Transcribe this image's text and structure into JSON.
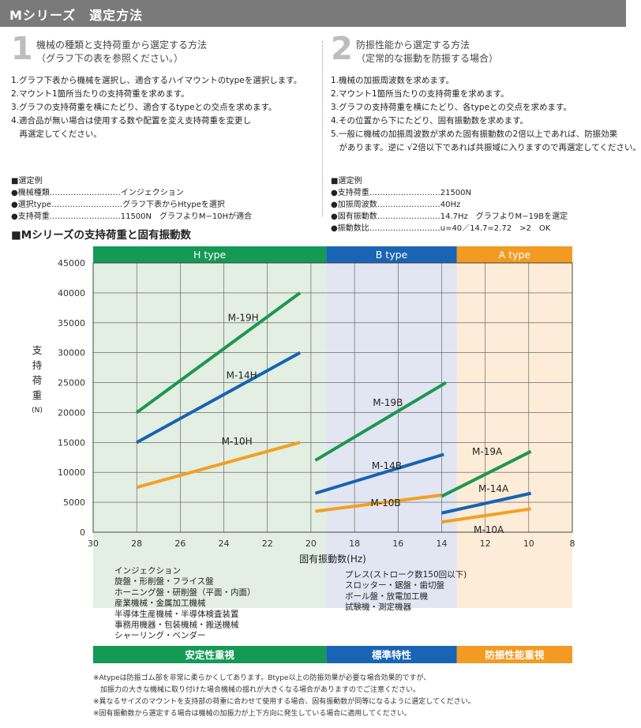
{
  "header": {
    "title": "Mシリーズ　選定方法"
  },
  "method1": {
    "number": "1",
    "title": "機械の種類と支持荷重から選定する方法",
    "subtitle": "（グラフ下の表を参照ください。）",
    "steps": [
      "1.グラフ下表から機械を選択し、適合するハイマウントのtypeを選択します。",
      "2.マウント1箇所当たりの支持荷重を求めます。",
      "3.グラフの支持荷重を横にたどり、適合するtypeとの交点を求めます。",
      "4.適合品が無い場合は使用する数や配置を変え支持荷重を変更し",
      "　再選定してください。"
    ],
    "example_title": "■選定例",
    "example": [
      "●機械種類………………………インジェクション",
      "●選択type………………………グラフ下表からHtypeを選択",
      "●支持荷重………………………11500N　グラフよりM−10Hが適合"
    ]
  },
  "method2": {
    "number": "2",
    "title": "防振性能から選定する方法",
    "subtitle": "（定常的な振動を防振する場合）",
    "steps": [
      "1.機械の加振周波数を求めます。",
      "2.マウント1箇所当たりの支持荷重を求めます。",
      "3.グラフの支持荷重を横にたどり、各typeとの交点を求めます。",
      "4.その位置から下にたどり、固有振動数を求めます。",
      "5.一般に機械の加振周波数が求めた固有振動数の2倍以上であれば、防振効果",
      "　があります。逆に √2倍以下であれば共振域に入りますので再選定してください。"
    ],
    "example_title": "■選定例",
    "example": [
      "●支持荷重………………………21500N",
      "●加振周波数……………………40Hz",
      "●固有振動数……………………14.7Hz　グラフよりM−19Bを選定",
      "●振動数比………………………u=40／14.7=2.72　>2　OK"
    ]
  },
  "chart_heading": "■Mシリーズの支持荷重と固有振動数",
  "chart_data": {
    "type": "line",
    "title": "",
    "xlabel": "固有振動数(Hz)",
    "ylabel": "支持荷重",
    "ylabel_unit": "(N)",
    "xlim": [
      30,
      8
    ],
    "ylim": [
      0,
      45000
    ],
    "x_ticks": [
      30,
      28,
      26,
      24,
      22,
      20,
      18,
      16,
      14,
      12,
      10,
      8
    ],
    "y_ticks": [
      0,
      5000,
      10000,
      15000,
      20000,
      25000,
      30000,
      35000,
      40000,
      45000
    ],
    "grid": true,
    "bands": [
      {
        "label": "H type",
        "from": 30,
        "to": 19.3,
        "bar_color": "#149a55",
        "fill": "#e2efe2",
        "bottom_label": "安定性重視"
      },
      {
        "label": "B type",
        "from": 19.3,
        "to": 13.3,
        "bar_color": "#1a64b4",
        "fill": "#e1e6f2",
        "bottom_label": "標準特性"
      },
      {
        "label": "A type",
        "from": 13.3,
        "to": 8,
        "bar_color": "#f29a22",
        "fill": "#fcecd8",
        "bottom_label": "防振性能重視"
      }
    ],
    "series": [
      {
        "name": "M-19H",
        "color": "#1f9650",
        "x": [
          28,
          20.5
        ],
        "y": [
          20000,
          40000
        ]
      },
      {
        "name": "M-14H",
        "color": "#1763b2",
        "x": [
          28,
          20.5
        ],
        "y": [
          15000,
          30000
        ]
      },
      {
        "name": "M-10H",
        "color": "#f2a023",
        "x": [
          28,
          20.5
        ],
        "y": [
          7500,
          15000
        ]
      },
      {
        "name": "M-19B",
        "color": "#1f9650",
        "x": [
          19.8,
          13.8
        ],
        "y": [
          12000,
          25000
        ]
      },
      {
        "name": "M-14B",
        "color": "#1763b2",
        "x": [
          19.8,
          13.9
        ],
        "y": [
          6500,
          13000
        ]
      },
      {
        "name": "M-10B",
        "color": "#f2a023",
        "x": [
          19.8,
          14.0
        ],
        "y": [
          3500,
          6200
        ]
      },
      {
        "name": "M-19A",
        "color": "#1f9650",
        "x": [
          14.0,
          9.9
        ],
        "y": [
          6000,
          13500
        ]
      },
      {
        "name": "M-14A",
        "color": "#1763b2",
        "x": [
          14.0,
          9.9
        ],
        "y": [
          3200,
          6500
        ]
      },
      {
        "name": "M-10A",
        "color": "#f2a023",
        "x": [
          14.0,
          9.9
        ],
        "y": [
          1700,
          3900
        ]
      }
    ],
    "band_machines": {
      "h_type": [
        "インジェクション",
        "旋盤・形削盤・フライス盤",
        "ホーニング盤・研削盤（平面・内面）",
        "産業機械・金属加工機械",
        "半導体生産機械・半導体検査装置",
        "事務用機器・包装機械・搬送機械",
        "シャーリング・ベンダー"
      ],
      "b_type": [
        "プレス(ストローク数150回以下)",
        "スロッター・鋸盤・歯切盤",
        "ボール盤・放電加工機",
        "試験機・測定機器"
      ]
    }
  },
  "notes": [
    "※Atypeは防振ゴム部を非常に柔らかくしてあります。Btype以上の防振効果が必要な場合効果的ですが、",
    "　加振力の大きな機械に取り付けた場合機械の揺れが大きくなる場合がありますのでご注意ください。",
    "※異なるサイズのマウントを支持部の荷重に合わせて使用する場合、固有振動数が同等になるように選定してください。",
    "※固有振動数から選定する場合は機械の加振力が上下方向に発生している場合に適用してください。"
  ]
}
